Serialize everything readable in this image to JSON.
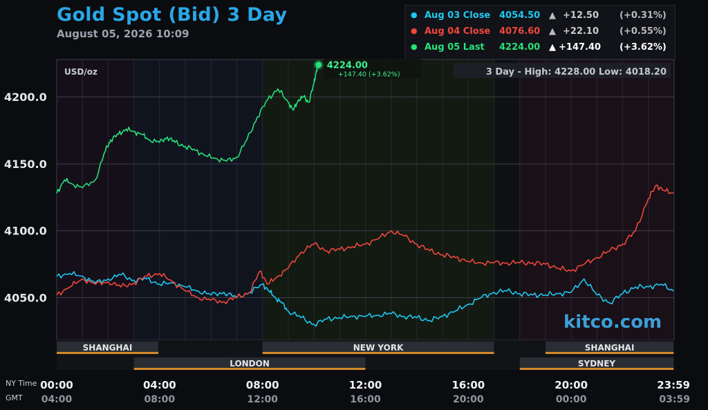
{
  "header": {
    "title": "Gold Spot (Bid) 3 Day",
    "subtitle": "August 05, 2026 10:09"
  },
  "legend": [
    {
      "label": "Aug 03 Close",
      "price": "4054.50",
      "arrow": "▲",
      "change": "+12.50",
      "pct": "(+0.31%)",
      "color": "#1ec8f0"
    },
    {
      "label": "Aug 04 Close",
      "price": "4076.60",
      "arrow": "▲",
      "change": "+22.10",
      "pct": "(+0.55%)",
      "color": "#f0473c"
    },
    {
      "label": "Aug 05 Last",
      "price": "4224.00",
      "arrow": "▲",
      "change": "+147.40",
      "pct": "(+3.62%)",
      "color": "#27e07a"
    }
  ],
  "plot": {
    "unit_label": "USD/oz",
    "range_label": "3 Day - High: 4228.00  Low: 4018.20",
    "last_label": "4224.00",
    "last_change": "+147.40 (+3.62%)",
    "brand": "kitco.com"
  },
  "sessions": [
    {
      "name": "SHANGHAI",
      "start": 0,
      "end": 3.95,
      "row": 1
    },
    {
      "name": "NEW YORK",
      "start": 8.0,
      "end": 17.0,
      "row": 1
    },
    {
      "name": "SHANGHAI",
      "start": 19.0,
      "end": 23.98,
      "row": 1
    },
    {
      "name": "LONDON",
      "start": 3.0,
      "end": 12.0,
      "row": 2
    },
    {
      "name": "SYDNEY",
      "start": 18.0,
      "end": 23.98,
      "row": 2
    }
  ],
  "time_axis": {
    "ny_label": "NY Time",
    "gmt_label": "GMT",
    "ny_ticks": [
      "00:00",
      "04:00",
      "08:00",
      "12:00",
      "16:00",
      "20:00",
      "23:59"
    ],
    "gmt_ticks": [
      "04:00",
      "08:00",
      "12:00",
      "16:00",
      "20:00",
      "00:00",
      "03:59"
    ]
  },
  "chart_data": {
    "type": "line",
    "title": "Gold Spot (Bid) 3 Day",
    "ylabel": "USD/oz",
    "xlabel": "NY Time",
    "ylim": [
      4018.2,
      4228.0
    ],
    "xlim": [
      0,
      24
    ],
    "yticks": [
      "4050.0",
      "4100.0",
      "4150.0",
      "4200.0"
    ],
    "grid": true,
    "legend_position": "top-right",
    "series": [
      {
        "name": "Aug 03",
        "color": "#1ec8f0",
        "x": [
          0,
          0.5,
          1,
          1.5,
          2,
          2.5,
          3,
          3.5,
          4,
          4.5,
          5,
          5.5,
          6,
          6.5,
          7,
          7.5,
          8,
          8.25,
          8.5,
          8.75,
          9,
          9.5,
          10,
          10.5,
          11,
          11.5,
          12,
          12.5,
          13,
          13.5,
          14,
          14.5,
          15,
          15.5,
          16,
          16.5,
          17,
          17.5,
          18,
          18.5,
          19,
          19.5,
          20,
          20.5,
          21,
          21.5,
          22,
          22.5,
          23,
          23.5,
          23.98
        ],
        "y": [
          4066,
          4068,
          4066,
          4061,
          4064,
          4067,
          4063,
          4064,
          4060,
          4061,
          4058,
          4055,
          4052,
          4054,
          4050,
          4054,
          4060,
          4055,
          4050,
          4046,
          4040,
          4035,
          4030,
          4034,
          4035,
          4036,
          4036,
          4037,
          4038,
          4036,
          4035,
          4033,
          4036,
          4040,
          4045,
          4050,
          4054,
          4055,
          4053,
          4052,
          4052,
          4053,
          4054,
          4064,
          4052,
          4046,
          4053,
          4058,
          4058,
          4060,
          4055
        ]
      },
      {
        "name": "Aug 04",
        "color": "#f0473c",
        "x": [
          0,
          0.5,
          1,
          1.5,
          2,
          2.5,
          3,
          3.5,
          4,
          4.5,
          5,
          5.5,
          6,
          6.5,
          7,
          7.5,
          7.9,
          8.2,
          8.6,
          9,
          9.5,
          10,
          10.5,
          11,
          11.5,
          12,
          12.5,
          13,
          13.5,
          14,
          14.5,
          15,
          15.5,
          16,
          16.5,
          17,
          17.5,
          18,
          18.5,
          19,
          19.5,
          20,
          20.5,
          21,
          21.5,
          22,
          22.5,
          23,
          23.3,
          23.6,
          23.98
        ],
        "y": [
          4052,
          4058,
          4064,
          4060,
          4062,
          4058,
          4061,
          4066,
          4068,
          4062,
          4055,
          4050,
          4048,
          4047,
          4050,
          4054,
          4070,
          4060,
          4066,
          4072,
          4084,
          4090,
          4085,
          4086,
          4088,
          4090,
          4094,
          4100,
          4096,
          4090,
          4085,
          4082,
          4080,
          4077,
          4076,
          4076,
          4076,
          4076,
          4076,
          4075,
          4072,
          4070,
          4075,
          4080,
          4085,
          4090,
          4100,
          4124,
          4134,
          4130,
          4128
        ]
      },
      {
        "name": "Aug 05",
        "color": "#27e07a",
        "x": [
          0,
          0.3,
          0.6,
          1.0,
          1.5,
          1.9,
          2.1,
          2.4,
          2.7,
          3.0,
          3.3,
          3.6,
          4.0,
          4.3,
          4.6,
          5.0,
          5.4,
          5.8,
          6.2,
          6.6,
          7.0,
          7.4,
          7.8,
          8.2,
          8.6,
          9.0,
          9.2,
          9.4,
          9.6,
          9.8,
          10.0,
          10.1,
          10.18
        ],
        "y": [
          4128,
          4138,
          4135,
          4132,
          4138,
          4160,
          4168,
          4172,
          4176,
          4174,
          4172,
          4168,
          4166,
          4170,
          4166,
          4163,
          4160,
          4156,
          4154,
          4152,
          4155,
          4168,
          4185,
          4198,
          4206,
          4196,
          4190,
          4198,
          4200,
          4196,
          4210,
          4220,
          4224
        ]
      }
    ]
  }
}
